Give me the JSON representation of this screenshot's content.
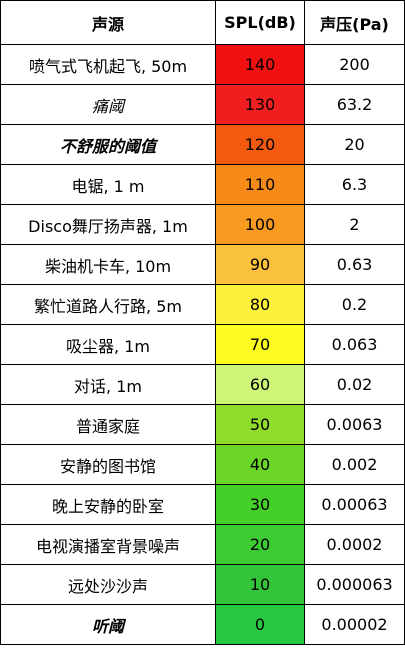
{
  "headers": [
    "声源",
    "SPL(dB)",
    "声压(Pa)"
  ],
  "rows": [
    {
      "source": "喷气式飞机起飞, 50m",
      "spl": "140",
      "pa": "200",
      "color": "#f01010",
      "style": ""
    },
    {
      "source": "痛阈",
      "spl": "130",
      "pa": "63.2",
      "color": "#f01e1e",
      "style": "italic"
    },
    {
      "source": "不舒服的阈值",
      "spl": "120",
      "pa": "20",
      "color": "#f35a10",
      "style": "bold-italic"
    },
    {
      "source": "电锯, 1 m",
      "spl": "110",
      "pa": "6.3",
      "color": "#f68a18",
      "style": ""
    },
    {
      "source": "Disco舞厅扬声器, 1m",
      "spl": "100",
      "pa": "2",
      "color": "#f89a20",
      "style": ""
    },
    {
      "source": "柴油机卡车, 10m",
      "spl": "90",
      "pa": "0.63",
      "color": "#fac23c",
      "style": ""
    },
    {
      "source": "繁忙道路人行路, 5m",
      "spl": "80",
      "pa": "0.2",
      "color": "#fdf03c",
      "style": ""
    },
    {
      "source": "吸尘器, 1m",
      "spl": "70",
      "pa": "0.063",
      "color": "#fcfc20",
      "style": ""
    },
    {
      "source": "对话, 1m",
      "spl": "60",
      "pa": "0.02",
      "color": "#cdf678",
      "style": ""
    },
    {
      "source": "普通家庭",
      "spl": "50",
      "pa": "0.0063",
      "color": "#8fdc2c",
      "style": ""
    },
    {
      "source": "安静的图书馆",
      "spl": "40",
      "pa": "0.002",
      "color": "#6cd628",
      "style": ""
    },
    {
      "source": "晚上安静的卧室",
      "spl": "30",
      "pa": "0.00063",
      "color": "#44d028",
      "style": ""
    },
    {
      "source": "电视演播室背景噪声",
      "spl": "20",
      "pa": "0.0002",
      "color": "#3ccb32",
      "style": ""
    },
    {
      "source": "远处沙沙声",
      "spl": "10",
      "pa": "0.000063",
      "color": "#34c43a",
      "style": ""
    },
    {
      "source": "听阈",
      "spl": "0",
      "pa": "0.00002",
      "color": "#28c840",
      "style": "bold-italic"
    }
  ]
}
